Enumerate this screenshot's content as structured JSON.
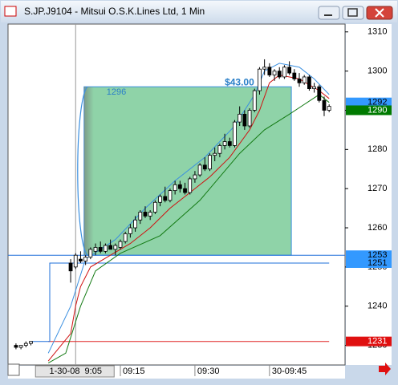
{
  "window": {
    "title": "S.JP.J9104 - Mitsui O.S.K.Lines Ltd, 1 Min"
  },
  "chart_data": {
    "type": "candlestick",
    "x": [
      0,
      1,
      2,
      3,
      11,
      12,
      13,
      14,
      15,
      16,
      17,
      18,
      19,
      20,
      21,
      22,
      23,
      24,
      25,
      26,
      27,
      28,
      29,
      30,
      31,
      32,
      33,
      34,
      35,
      36,
      37,
      38,
      39,
      40,
      41,
      42,
      43,
      44,
      45,
      46,
      47,
      48,
      49,
      50,
      51,
      52,
      53,
      54,
      55,
      56,
      57,
      58,
      59,
      60,
      61,
      62,
      63
    ],
    "open": [
      1230,
      1229.5,
      1230,
      1230.5,
      1251,
      1250,
      1252,
      1251.5,
      1252.5,
      1254,
      1255,
      1254,
      1255.5,
      1254.5,
      1255,
      1256.5,
      1258.5,
      1260,
      1262,
      1264,
      1263,
      1264,
      1266.5,
      1268,
      1267,
      1269.5,
      1271,
      1270,
      1269,
      1272.5,
      1273.5,
      1276,
      1275,
      1278.5,
      1279,
      1281,
      1282,
      1281,
      1287,
      1289,
      1286,
      1290,
      1295,
      1300.5,
      1301,
      1299,
      1300,
      1298.5,
      1301,
      1299.5,
      1298,
      1297,
      1298.5,
      1295.5,
      1296,
      1292.5,
      1290
    ],
    "high": [
      1230.5,
      1230,
      1231,
      1231,
      1252,
      1253.5,
      1254,
      1253,
      1255,
      1256,
      1256.5,
      1256,
      1257,
      1256,
      1257,
      1259,
      1261,
      1263,
      1264.5,
      1265.5,
      1264.5,
      1267,
      1268.5,
      1270.5,
      1270,
      1272,
      1272,
      1271.5,
      1273,
      1274.5,
      1276.5,
      1278,
      1279,
      1280.5,
      1281.5,
      1284,
      1283,
      1287.5,
      1291,
      1290,
      1290.5,
      1295.5,
      1301,
      1303,
      1302,
      1300.5,
      1301,
      1301.5,
      1302.5,
      1300.5,
      1299.5,
      1299,
      1299,
      1297,
      1296.5,
      1293.5,
      1291.5
    ],
    "low": [
      1229,
      1229,
      1229.5,
      1230,
      1246,
      1249.5,
      1251,
      1250.5,
      1252,
      1253,
      1253.5,
      1253.5,
      1254.5,
      1253,
      1254.5,
      1256,
      1257.5,
      1259,
      1261,
      1262.5,
      1262,
      1263.5,
      1265.5,
      1266.5,
      1266.5,
      1268.5,
      1269,
      1268.5,
      1268.5,
      1271.5,
      1273,
      1274.5,
      1274.5,
      1277,
      1278,
      1280,
      1280.5,
      1280.5,
      1286,
      1285,
      1285.5,
      1289.5,
      1294,
      1299,
      1298.5,
      1297.5,
      1298,
      1298,
      1299,
      1297.5,
      1296,
      1296.5,
      1295,
      1294.5,
      1292,
      1288.5,
      1289.5
    ],
    "close": [
      1229.5,
      1230,
      1230.5,
      1231,
      1249,
      1253,
      1251.5,
      1252.5,
      1254.5,
      1255,
      1254,
      1255.5,
      1254.5,
      1255.5,
      1256.5,
      1258.5,
      1260,
      1262,
      1264,
      1263,
      1264,
      1266.5,
      1268,
      1267,
      1269.5,
      1271,
      1270,
      1269,
      1272.5,
      1273.5,
      1276,
      1275,
      1278.5,
      1279,
      1281,
      1282,
      1281,
      1287,
      1289,
      1286,
      1290,
      1295,
      1300.5,
      1301,
      1299,
      1300,
      1298.5,
      1301,
      1299.5,
      1298,
      1297,
      1298.5,
      1295.5,
      1296,
      1292.5,
      1290,
      1291
    ],
    "xlim": [
      -1.6,
      66.2
    ],
    "ylim": [
      1225,
      1312
    ],
    "yticks": [
      1230,
      1240,
      1250,
      1260,
      1270,
      1280,
      1290,
      1300,
      1310
    ],
    "xticks": [
      {
        "value": 21,
        "label": "09:15"
      },
      {
        "value": 36,
        "label": "09:30"
      },
      {
        "value": 51,
        "label": "30-09:45"
      }
    ],
    "cursor": {
      "x": 12,
      "label": "1-30-08  9:05"
    },
    "zone": {
      "x": [
        13.7,
        55.4
      ],
      "y": [
        1253,
        1296
      ],
      "color": "#8fd3a8"
    },
    "annotation": {
      "text": "$43.00",
      "x": 42,
      "y": 1297
    },
    "levels": [
      {
        "value": 1253,
        "color": "#1e6fd9",
        "x": [
          -1.6,
          66.2
        ]
      },
      {
        "value": 1231,
        "color": "#e02020",
        "x": [
          6.5,
          63
        ]
      }
    ],
    "overlays": [
      {
        "color": "#1e6fd9",
        "x": [
          3,
          6.8,
          6.8,
          63
        ],
        "values": [
          1231,
          1231,
          1251,
          1251
        ]
      },
      {
        "color": "#137a13",
        "x": [
          6.5,
          10,
          13,
          16,
          21,
          29,
          37,
          45,
          50,
          55,
          61,
          63
        ],
        "values": [
          1225.5,
          1228,
          1240,
          1249,
          1253.5,
          1258,
          1267,
          1279,
          1285,
          1289,
          1294,
          1292
        ]
      },
      {
        "color": "#d01010",
        "x": [
          6.5,
          11,
          12,
          13,
          15,
          19,
          23,
          27,
          31,
          35,
          39,
          43,
          47,
          49,
          51,
          53,
          57,
          61,
          63
        ],
        "values": [
          1226,
          1233,
          1240,
          1245,
          1250,
          1253,
          1256,
          1260,
          1265,
          1269,
          1273,
          1278,
          1285,
          1290,
          1297,
          1299,
          1298,
          1295,
          1293
        ]
      },
      {
        "color": "#3a8fe0",
        "x": [
          6.5,
          11,
          14,
          20,
          26,
          32,
          38,
          44,
          48,
          50,
          53,
          57,
          60,
          63
        ],
        "values": [
          1228,
          1240,
          1252,
          1257,
          1265,
          1272,
          1278,
          1286,
          1294,
          1300,
          1302,
          1301,
          1298,
          1294
        ]
      }
    ],
    "price_markers": [
      {
        "value": 1292,
        "color": "#3399ff",
        "text_color": "#000000"
      },
      {
        "value": 1290,
        "color": "#007a00",
        "text_color": "#ffffff"
      },
      {
        "value": 1253,
        "color": "#3399ff",
        "text_color": "#000000"
      },
      {
        "value": 1251,
        "color": "#3399ff",
        "text_color": "#000000"
      },
      {
        "value": 1231,
        "color": "#e01010",
        "text_color": "#ffffff"
      }
    ]
  }
}
